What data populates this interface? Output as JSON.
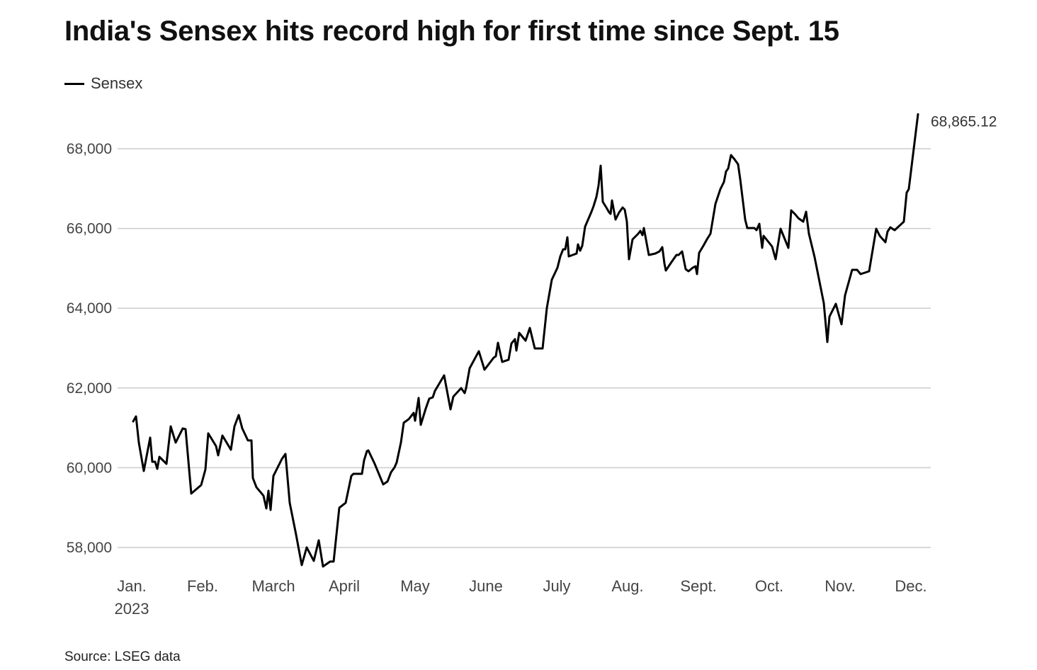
{
  "chart_data": {
    "type": "line",
    "title": "India's Sensex hits record high for first time since Sept. 15",
    "legend": [
      {
        "name": "Sensex",
        "color": "#000000"
      }
    ],
    "legend_placement": "top-left",
    "source": "Source: LSEG data",
    "xlabel": "",
    "ylabel": "",
    "x_unit": "months since Jan. 1, 2023",
    "x_ticks": [
      {
        "pos": 0,
        "label": "Jan.",
        "sublabel": "2023"
      },
      {
        "pos": 1,
        "label": "Feb."
      },
      {
        "pos": 2,
        "label": "March"
      },
      {
        "pos": 3,
        "label": "April"
      },
      {
        "pos": 4,
        "label": "May"
      },
      {
        "pos": 5,
        "label": "June"
      },
      {
        "pos": 6,
        "label": "July"
      },
      {
        "pos": 7,
        "label": "Aug."
      },
      {
        "pos": 8,
        "label": "Sept."
      },
      {
        "pos": 9,
        "label": "Oct."
      },
      {
        "pos": 10,
        "label": "Nov."
      },
      {
        "pos": 11,
        "label": "Dec."
      }
    ],
    "y_ticks": [
      {
        "value": 58000,
        "label": "58,000"
      },
      {
        "value": 60000,
        "label": "60,000"
      },
      {
        "value": 62000,
        "label": "62,000"
      },
      {
        "value": 64000,
        "label": "64,000"
      },
      {
        "value": 66000,
        "label": "66,000"
      },
      {
        "value": 68000,
        "label": "68,000"
      }
    ],
    "xlim": [
      0,
      11.24
    ],
    "ylim": [
      57400,
      69000
    ],
    "grid": "horizontal",
    "end_label": "68,865.12",
    "series": [
      {
        "name": "Sensex",
        "color": "#000000",
        "points": [
          [
            0.02,
            61162
          ],
          [
            0.06,
            61287
          ],
          [
            0.1,
            60630
          ],
          [
            0.17,
            59919
          ],
          [
            0.26,
            60754
          ],
          [
            0.29,
            60150
          ],
          [
            0.33,
            60150
          ],
          [
            0.36,
            59972
          ],
          [
            0.39,
            60274
          ],
          [
            0.49,
            60097
          ],
          [
            0.55,
            61038
          ],
          [
            0.62,
            60630
          ],
          [
            0.72,
            60985
          ],
          [
            0.76,
            60967
          ],
          [
            0.84,
            59351
          ],
          [
            0.98,
            59564
          ],
          [
            1.04,
            59955
          ],
          [
            1.08,
            60861
          ],
          [
            1.19,
            60541
          ],
          [
            1.22,
            60310
          ],
          [
            1.28,
            60807
          ],
          [
            1.4,
            60452
          ],
          [
            1.45,
            61038
          ],
          [
            1.51,
            61322
          ],
          [
            1.56,
            60985
          ],
          [
            1.64,
            60683
          ],
          [
            1.69,
            60683
          ],
          [
            1.71,
            59742
          ],
          [
            1.76,
            59511
          ],
          [
            1.86,
            59298
          ],
          [
            1.9,
            58978
          ],
          [
            1.93,
            59422
          ],
          [
            1.96,
            58942
          ],
          [
            2.0,
            59795
          ],
          [
            2.12,
            60221
          ],
          [
            2.17,
            60346
          ],
          [
            2.23,
            59120
          ],
          [
            2.32,
            58321
          ],
          [
            2.4,
            57557
          ],
          [
            2.47,
            58001
          ],
          [
            2.57,
            57664
          ],
          [
            2.64,
            58179
          ],
          [
            2.7,
            57522
          ],
          [
            2.8,
            57646
          ],
          [
            2.85,
            57646
          ],
          [
            2.93,
            58996
          ],
          [
            3.02,
            59120
          ],
          [
            3.1,
            59795
          ],
          [
            3.13,
            59848
          ],
          [
            3.25,
            59848
          ],
          [
            3.28,
            60186
          ],
          [
            3.32,
            60416
          ],
          [
            3.34,
            60434
          ],
          [
            3.43,
            60097
          ],
          [
            3.55,
            59582
          ],
          [
            3.61,
            59653
          ],
          [
            3.66,
            59884
          ],
          [
            3.71,
            60008
          ],
          [
            3.74,
            60132
          ],
          [
            3.8,
            60630
          ],
          [
            3.84,
            61127
          ],
          [
            3.91,
            61216
          ],
          [
            3.98,
            61376
          ],
          [
            4.0,
            61180
          ],
          [
            4.05,
            61749
          ],
          [
            4.08,
            61074
          ],
          [
            4.15,
            61482
          ],
          [
            4.2,
            61731
          ],
          [
            4.25,
            61766
          ],
          [
            4.28,
            61926
          ],
          [
            4.41,
            62317
          ],
          [
            4.5,
            61464
          ],
          [
            4.54,
            61784
          ],
          [
            4.65,
            61997
          ],
          [
            4.7,
            61873
          ],
          [
            4.72,
            61997
          ],
          [
            4.77,
            62494
          ],
          [
            4.9,
            62921
          ],
          [
            4.98,
            62459
          ],
          [
            5.11,
            62761
          ],
          [
            5.14,
            62796
          ],
          [
            5.17,
            63134
          ],
          [
            5.23,
            62654
          ],
          [
            5.32,
            62708
          ],
          [
            5.36,
            63116
          ],
          [
            5.41,
            63223
          ],
          [
            5.43,
            62938
          ],
          [
            5.47,
            63382
          ],
          [
            5.56,
            63187
          ],
          [
            5.62,
            63507
          ],
          [
            5.69,
            62992
          ],
          [
            5.8,
            62992
          ],
          [
            5.86,
            64004
          ],
          [
            5.93,
            64714
          ],
          [
            6.01,
            65016
          ],
          [
            6.05,
            65300
          ],
          [
            6.09,
            65478
          ],
          [
            6.12,
            65478
          ],
          [
            6.15,
            65780
          ],
          [
            6.17,
            65300
          ],
          [
            6.28,
            65372
          ],
          [
            6.3,
            65602
          ],
          [
            6.33,
            65443
          ],
          [
            6.36,
            65567
          ],
          [
            6.4,
            66046
          ],
          [
            6.49,
            66419
          ],
          [
            6.52,
            66561
          ],
          [
            6.56,
            66792
          ],
          [
            6.59,
            67076
          ],
          [
            6.62,
            67574
          ],
          [
            6.65,
            66668
          ],
          [
            6.7,
            66526
          ],
          [
            6.74,
            66402
          ],
          [
            6.76,
            66366
          ],
          [
            6.78,
            66704
          ],
          [
            6.83,
            66224
          ],
          [
            6.88,
            66402
          ],
          [
            6.93,
            66526
          ],
          [
            6.96,
            66473
          ],
          [
            6.99,
            66171
          ],
          [
            7.02,
            65229
          ],
          [
            7.07,
            65727
          ],
          [
            7.15,
            65869
          ],
          [
            7.18,
            65940
          ],
          [
            7.21,
            65833
          ],
          [
            7.23,
            66011
          ],
          [
            7.3,
            65336
          ],
          [
            7.39,
            65372
          ],
          [
            7.45,
            65425
          ],
          [
            7.49,
            65531
          ],
          [
            7.52,
            65123
          ],
          [
            7.54,
            64945
          ],
          [
            7.62,
            65158
          ],
          [
            7.69,
            65336
          ],
          [
            7.72,
            65336
          ],
          [
            7.77,
            65425
          ],
          [
            7.82,
            64981
          ],
          [
            7.86,
            64928
          ],
          [
            7.92,
            65016
          ],
          [
            7.96,
            65052
          ],
          [
            7.98,
            64857
          ],
          [
            8.01,
            65389
          ],
          [
            8.07,
            65567
          ],
          [
            8.12,
            65727
          ],
          [
            8.17,
            65869
          ],
          [
            8.24,
            66615
          ],
          [
            8.31,
            66988
          ],
          [
            8.36,
            67165
          ],
          [
            8.39,
            67432
          ],
          [
            8.42,
            67503
          ],
          [
            8.46,
            67840
          ],
          [
            8.51,
            67734
          ],
          [
            8.56,
            67609
          ],
          [
            8.59,
            67236
          ],
          [
            8.66,
            66224
          ],
          [
            8.69,
            66011
          ],
          [
            8.79,
            66011
          ],
          [
            8.82,
            65958
          ],
          [
            8.86,
            66117
          ],
          [
            8.9,
            65514
          ],
          [
            8.92,
            65815
          ],
          [
            9.04,
            65549
          ],
          [
            9.09,
            65229
          ],
          [
            9.16,
            65993
          ],
          [
            9.27,
            65514
          ],
          [
            9.31,
            66455
          ],
          [
            9.37,
            66348
          ],
          [
            9.41,
            66260
          ],
          [
            9.48,
            66171
          ],
          [
            9.52,
            66419
          ],
          [
            9.56,
            65869
          ],
          [
            9.64,
            65283
          ],
          [
            9.77,
            64128
          ],
          [
            9.82,
            63152
          ],
          [
            9.85,
            63791
          ],
          [
            9.94,
            64111
          ],
          [
            10.02,
            63596
          ],
          [
            10.07,
            64324
          ],
          [
            10.17,
            64963
          ],
          [
            10.24,
            64963
          ],
          [
            10.29,
            64857
          ],
          [
            10.41,
            64928
          ],
          [
            10.51,
            65993
          ],
          [
            10.56,
            65815
          ],
          [
            10.64,
            65656
          ],
          [
            10.67,
            65922
          ],
          [
            10.71,
            66029
          ],
          [
            10.77,
            65958
          ],
          [
            10.9,
            66171
          ],
          [
            10.94,
            66899
          ],
          [
            10.97,
            66988
          ],
          [
            11.1,
            68865.12
          ]
        ]
      }
    ]
  }
}
